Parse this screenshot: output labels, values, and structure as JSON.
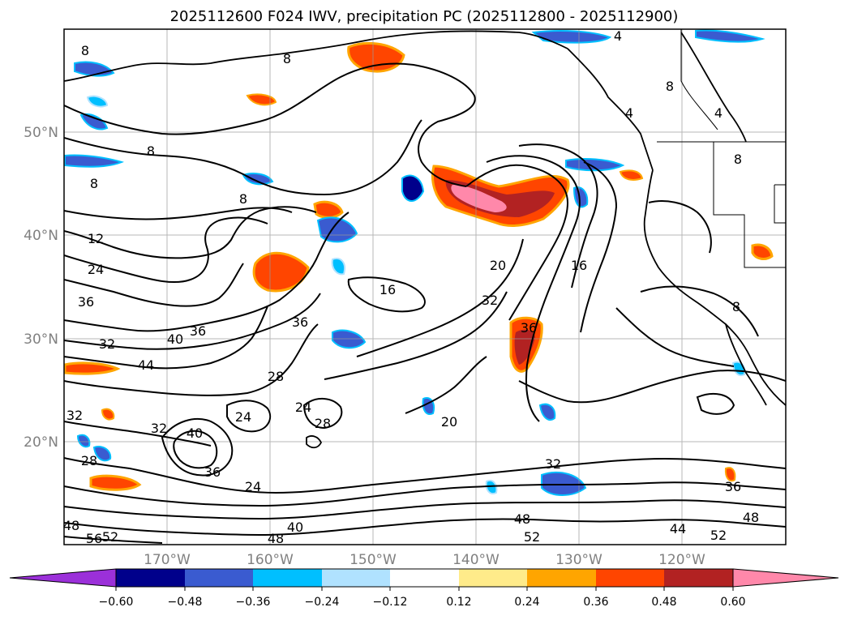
{
  "title": "2025112600 F024 IWV, precipitation PC (2025112800 - 2025112900)",
  "map": {
    "lat_labels": [
      "50°N",
      "40°N",
      "30°N",
      "20°N"
    ],
    "lon_labels": [
      "170°W",
      "160°W",
      "150°W",
      "140°W",
      "130°W",
      "120°W"
    ],
    "grid": true,
    "contour_variable": "IWV",
    "contour_labels": [
      "8",
      "8",
      "8",
      "8",
      "12",
      "24",
      "36",
      "32",
      "40",
      "36",
      "44",
      "36",
      "16",
      "20",
      "16",
      "32",
      "36",
      "28",
      "24",
      "24",
      "28",
      "20",
      "40",
      "36",
      "24",
      "32",
      "36",
      "48",
      "52",
      "44",
      "52",
      "48",
      "40",
      "48",
      "56",
      "52",
      "48",
      "4",
      "4",
      "8",
      "4",
      "8",
      "8",
      "8",
      "32",
      "32",
      "28"
    ]
  },
  "colorbar": {
    "ticks": [
      "−0.60",
      "−0.48",
      "−0.36",
      "−0.24",
      "−0.12",
      "0.12",
      "0.24",
      "0.36",
      "0.48",
      "0.60"
    ],
    "colors": [
      "#9b30d9",
      "#00008b",
      "#3a5bd0",
      "#00bfff",
      "#b0e2ff",
      "#ffffff",
      "#ffeb8a",
      "#ffa500",
      "#ff4500",
      "#b22222",
      "#ff88aa",
      "#ff88aa"
    ]
  },
  "palette": {
    "purple": "#9b30d9",
    "navy": "#00008b",
    "royal": "#3a5bd0",
    "sky": "#00bfff",
    "pale_blue": "#b0e2ff",
    "yellow": "#ffeb8a",
    "orange": "#ffa500",
    "red_orange": "#ff4500",
    "firebrick": "#b22222",
    "pink": "#ff88aa"
  }
}
